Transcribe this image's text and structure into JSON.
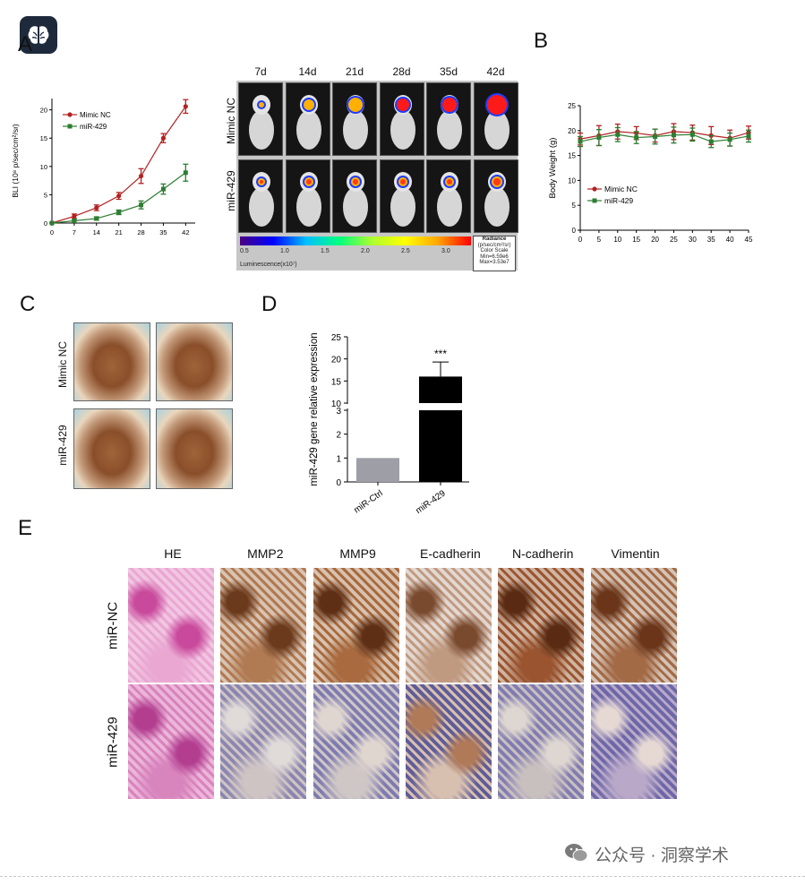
{
  "panel_letters": {
    "a": "A",
    "b": "B",
    "c": "C",
    "d": "D",
    "e": "E"
  },
  "panel_a_bli_labels": {
    "days": [
      "7d",
      "14d",
      "21d",
      "28d",
      "35d",
      "42d"
    ],
    "rows": [
      "Mimic NC",
      "miR-429"
    ],
    "colorbar_ticks": [
      "0.5",
      "1.0",
      "1.5",
      "2.0",
      "2.5",
      "3.0"
    ],
    "colorbar_label": "Luminescence(x10⁷)",
    "radiance_title": "Radiance",
    "radiance_units": "(p/sec/cm²/sr)",
    "radiance_scale": [
      "Color Scale",
      "Min=6.59e6",
      "Max=3.53e7"
    ]
  },
  "panel_c_labels": {
    "rows": [
      "Mimic NC",
      "miR-429"
    ]
  },
  "panel_e_labels": {
    "columns": [
      "HE",
      "MMP2",
      "MMP9",
      "E-cadherin",
      "N-cadherin",
      "Vimentin"
    ],
    "rows": [
      "miR-NC",
      "miR-429"
    ]
  },
  "watermark": {
    "text": "公众号 · 洞察学术"
  },
  "chart_data": [
    {
      "id": "A-line",
      "type": "line",
      "ylabel": "BLI (10⁸ p/sec/cm²/sr)",
      "x": [
        0,
        7,
        14,
        21,
        28,
        35,
        42
      ],
      "xlim": [
        0,
        45
      ],
      "ylim": [
        0,
        22
      ],
      "yticks": [
        0,
        5,
        10,
        15,
        20
      ],
      "legend_placement": "top-left",
      "series": [
        {
          "name": "Mimic NC",
          "color": "#b22222",
          "values": [
            0,
            1.2,
            2.7,
            4.8,
            8.3,
            15,
            20.6
          ],
          "errors": [
            0,
            0.4,
            0.5,
            0.6,
            1.3,
            0.8,
            1.2
          ]
        },
        {
          "name": "miR-429",
          "color": "#2e7d32",
          "values": [
            0,
            0.4,
            0.8,
            1.9,
            3.2,
            6,
            8.9
          ],
          "errors": [
            0,
            0.3,
            0.3,
            0.4,
            0.7,
            0.9,
            1.5
          ]
        }
      ]
    },
    {
      "id": "B-line",
      "type": "line",
      "ylabel": "Body Weight (g)",
      "x": [
        0,
        5,
        10,
        15,
        20,
        25,
        30,
        35,
        40,
        45
      ],
      "xlim": [
        0,
        45
      ],
      "ylim": [
        0,
        25
      ],
      "yticks": [
        0,
        5,
        10,
        15,
        20,
        25
      ],
      "legend_placement": "bottom-center",
      "series": [
        {
          "name": "Mimic NC",
          "color": "#b22222",
          "values": [
            18.3,
            19,
            19.8,
            19.5,
            19,
            19.8,
            19.6,
            19,
            18.5,
            19.6
          ],
          "errors": [
            1.2,
            2,
            1.5,
            1.3,
            1.3,
            1.6,
            1.5,
            1.8,
            1.6,
            1.3
          ]
        },
        {
          "name": "miR-429",
          "color": "#2e7d32",
          "values": [
            17.8,
            18.6,
            19.2,
            18.6,
            18.8,
            19.1,
            19.2,
            17.8,
            18.2,
            18.9
          ],
          "errors": [
            1,
            1.6,
            1.4,
            1.2,
            1.5,
            1.6,
            1.3,
            1.2,
            1.3,
            1.2
          ]
        }
      ]
    },
    {
      "id": "D-bar",
      "type": "bar",
      "ylabel": "miR-429 gene relative expression",
      "categories": [
        "miR-Ctrl",
        "miR-429"
      ],
      "values": [
        1,
        16
      ],
      "errors": [
        0,
        3.3
      ],
      "colors": [
        "#9e9ea6",
        "#000000"
      ],
      "annotation": "***",
      "axis_break": [
        3,
        10
      ],
      "ylim": [
        0,
        25
      ],
      "yticks": [
        0,
        1,
        2,
        3,
        10,
        15,
        20,
        25
      ]
    }
  ]
}
